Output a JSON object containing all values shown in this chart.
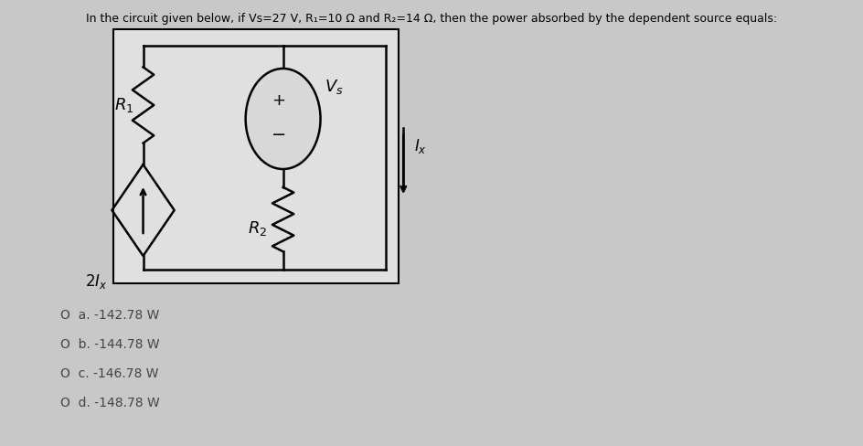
{
  "background_color": "#c8c8c8",
  "box_bg": "#d8d8d8",
  "title": "In the circuit given below, if Vs=27 V, R1=10 Ω and R2=14 Ω, then the power absorbed by the dependent source equals:",
  "options": [
    "O  a. -142.78 W",
    "O  b. -144.78 W",
    "O  c. -146.78 W",
    "O  d. -148.78 W"
  ],
  "lw": 1.8
}
